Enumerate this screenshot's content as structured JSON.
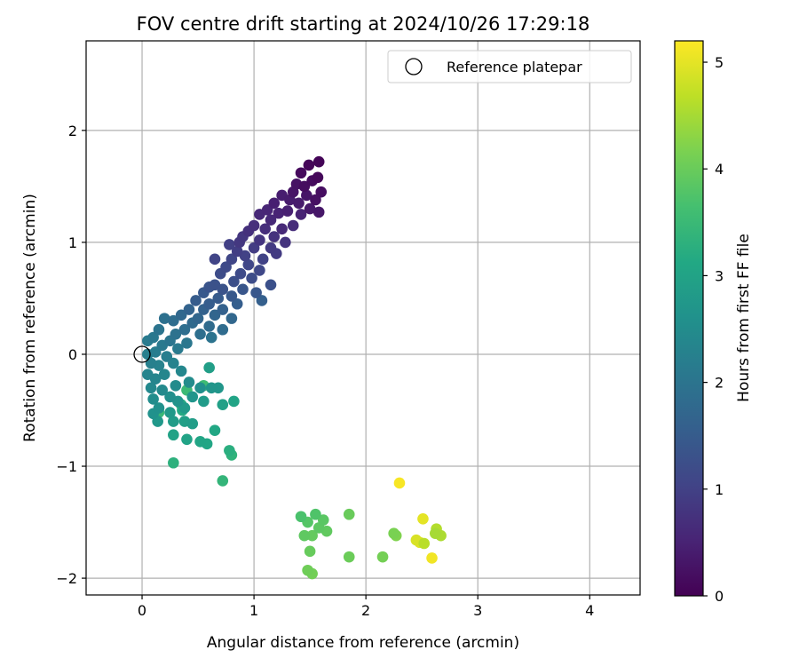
{
  "chart_data": {
    "type": "scatter",
    "title": "FOV centre drift starting at 2024/10/26 17:29:18",
    "xlabel": "Angular distance from reference (arcmin)",
    "ylabel": "Rotation from reference (arcmin)",
    "xlim": [
      -0.5,
      4.45
    ],
    "ylim": [
      -2.15,
      2.8
    ],
    "xticks": [
      0,
      1,
      2,
      3,
      4
    ],
    "xtick_labels": [
      "0",
      "1",
      "2",
      "3",
      "4"
    ],
    "yticks": [
      -2,
      -1,
      0,
      1,
      2
    ],
    "ytick_labels": [
      "−2",
      "−1",
      "0",
      "1",
      "2"
    ],
    "grid": true,
    "legend": {
      "label": "Reference platepar",
      "position": "upper right",
      "marker": "hollow circle"
    },
    "reference_point": {
      "x": 0,
      "y": 0
    },
    "colorbar": {
      "label": "Hours from first FF file",
      "min": 0,
      "max": 5.2,
      "colormap": "viridis",
      "ticks": [
        0,
        1,
        2,
        3,
        4,
        5
      ],
      "tick_labels": [
        "0",
        "1",
        "2",
        "3",
        "4",
        "5"
      ]
    },
    "points": [
      {
        "x": 1.58,
        "y": 1.72,
        "t": 0.05
      },
      {
        "x": 1.49,
        "y": 1.69,
        "t": 0.08
      },
      {
        "x": 1.57,
        "y": 1.58,
        "t": 0.1
      },
      {
        "x": 1.42,
        "y": 1.62,
        "t": 0.12
      },
      {
        "x": 1.52,
        "y": 1.55,
        "t": 0.15
      },
      {
        "x": 1.45,
        "y": 1.5,
        "t": 0.18
      },
      {
        "x": 1.6,
        "y": 1.45,
        "t": 0.2
      },
      {
        "x": 1.55,
        "y": 1.38,
        "t": 0.22
      },
      {
        "x": 1.38,
        "y": 1.52,
        "t": 0.25
      },
      {
        "x": 1.35,
        "y": 1.45,
        "t": 0.28
      },
      {
        "x": 1.47,
        "y": 1.42,
        "t": 0.3
      },
      {
        "x": 1.58,
        "y": 1.27,
        "t": 0.32
      },
      {
        "x": 1.5,
        "y": 1.3,
        "t": 0.35
      },
      {
        "x": 1.4,
        "y": 1.35,
        "t": 0.38
      },
      {
        "x": 1.32,
        "y": 1.38,
        "t": 0.4
      },
      {
        "x": 1.25,
        "y": 1.42,
        "t": 0.42
      },
      {
        "x": 1.18,
        "y": 1.35,
        "t": 0.45
      },
      {
        "x": 1.3,
        "y": 1.28,
        "t": 0.48
      },
      {
        "x": 1.42,
        "y": 1.25,
        "t": 0.5
      },
      {
        "x": 1.22,
        "y": 1.26,
        "t": 0.52
      },
      {
        "x": 1.12,
        "y": 1.29,
        "t": 0.55
      },
      {
        "x": 1.05,
        "y": 1.25,
        "t": 0.58
      },
      {
        "x": 1.15,
        "y": 1.2,
        "t": 0.6
      },
      {
        "x": 1.25,
        "y": 1.12,
        "t": 0.62
      },
      {
        "x": 1.35,
        "y": 1.15,
        "t": 0.65
      },
      {
        "x": 1.1,
        "y": 1.12,
        "t": 0.68
      },
      {
        "x": 1.0,
        "y": 1.15,
        "t": 0.7
      },
      {
        "x": 0.95,
        "y": 1.1,
        "t": 0.72
      },
      {
        "x": 1.18,
        "y": 1.05,
        "t": 0.75
      },
      {
        "x": 1.28,
        "y": 1.0,
        "t": 0.78
      },
      {
        "x": 1.05,
        "y": 1.02,
        "t": 0.8
      },
      {
        "x": 0.9,
        "y": 1.05,
        "t": 0.82
      },
      {
        "x": 0.87,
        "y": 1.0,
        "t": 0.85
      },
      {
        "x": 1.15,
        "y": 0.95,
        "t": 0.88
      },
      {
        "x": 1.2,
        "y": 0.9,
        "t": 0.9
      },
      {
        "x": 1.0,
        "y": 0.95,
        "t": 0.92
      },
      {
        "x": 0.85,
        "y": 0.92,
        "t": 0.95
      },
      {
        "x": 0.78,
        "y": 0.98,
        "t": 0.98
      },
      {
        "x": 0.92,
        "y": 0.88,
        "t": 1.0
      },
      {
        "x": 1.08,
        "y": 0.85,
        "t": 1.02
      },
      {
        "x": 0.65,
        "y": 0.85,
        "t": 1.05
      },
      {
        "x": 0.8,
        "y": 0.85,
        "t": 1.08
      },
      {
        "x": 0.95,
        "y": 0.8,
        "t": 1.1
      },
      {
        "x": 1.05,
        "y": 0.75,
        "t": 1.12
      },
      {
        "x": 0.75,
        "y": 0.78,
        "t": 1.15
      },
      {
        "x": 0.88,
        "y": 0.72,
        "t": 1.18
      },
      {
        "x": 0.7,
        "y": 0.72,
        "t": 1.2
      },
      {
        "x": 0.98,
        "y": 0.68,
        "t": 1.22
      },
      {
        "x": 0.82,
        "y": 0.65,
        "t": 1.25
      },
      {
        "x": 1.15,
        "y": 0.62,
        "t": 1.28
      },
      {
        "x": 0.65,
        "y": 0.62,
        "t": 1.3
      },
      {
        "x": 0.72,
        "y": 0.58,
        "t": 1.32
      },
      {
        "x": 0.6,
        "y": 0.6,
        "t": 1.35
      },
      {
        "x": 0.9,
        "y": 0.58,
        "t": 1.38
      },
      {
        "x": 1.02,
        "y": 0.55,
        "t": 1.4
      },
      {
        "x": 0.8,
        "y": 0.52,
        "t": 1.42
      },
      {
        "x": 0.55,
        "y": 0.55,
        "t": 1.45
      },
      {
        "x": 0.68,
        "y": 0.5,
        "t": 1.48
      },
      {
        "x": 0.48,
        "y": 0.48,
        "t": 1.5
      },
      {
        "x": 0.6,
        "y": 0.45,
        "t": 1.52
      },
      {
        "x": 0.85,
        "y": 0.45,
        "t": 1.55
      },
      {
        "x": 1.07,
        "y": 0.48,
        "t": 1.58
      },
      {
        "x": 0.72,
        "y": 0.4,
        "t": 1.6
      },
      {
        "x": 0.55,
        "y": 0.4,
        "t": 1.62
      },
      {
        "x": 0.42,
        "y": 0.4,
        "t": 1.65
      },
      {
        "x": 0.65,
        "y": 0.35,
        "t": 1.68
      },
      {
        "x": 0.5,
        "y": 0.32,
        "t": 1.7
      },
      {
        "x": 0.8,
        "y": 0.32,
        "t": 1.72
      },
      {
        "x": 0.35,
        "y": 0.35,
        "t": 1.75
      },
      {
        "x": 0.45,
        "y": 0.28,
        "t": 1.78
      },
      {
        "x": 0.6,
        "y": 0.25,
        "t": 1.8
      },
      {
        "x": 0.72,
        "y": 0.22,
        "t": 1.82
      },
      {
        "x": 0.28,
        "y": 0.3,
        "t": 1.85
      },
      {
        "x": 0.38,
        "y": 0.22,
        "t": 1.88
      },
      {
        "x": 0.52,
        "y": 0.18,
        "t": 1.9
      },
      {
        "x": 0.2,
        "y": 0.32,
        "t": 1.92
      },
      {
        "x": 0.3,
        "y": 0.18,
        "t": 1.95
      },
      {
        "x": 0.62,
        "y": 0.15,
        "t": 1.98
      },
      {
        "x": 0.15,
        "y": 0.22,
        "t": 2.0
      },
      {
        "x": 0.25,
        "y": 0.12,
        "t": 2.02
      },
      {
        "x": 0.4,
        "y": 0.1,
        "t": 2.05
      },
      {
        "x": 0.1,
        "y": 0.15,
        "t": 2.08
      },
      {
        "x": 0.18,
        "y": 0.08,
        "t": 2.1
      },
      {
        "x": 0.32,
        "y": 0.05,
        "t": 2.12
      },
      {
        "x": 0.05,
        "y": 0.12,
        "t": 2.15
      },
      {
        "x": 0.12,
        "y": 0.02,
        "t": 2.18
      },
      {
        "x": 0.22,
        "y": -0.02,
        "t": 2.2
      },
      {
        "x": 0.05,
        "y": 0.0,
        "t": 2.22
      },
      {
        "x": 0.08,
        "y": -0.08,
        "t": 2.25
      },
      {
        "x": 0.15,
        "y": -0.1,
        "t": 2.28
      },
      {
        "x": 0.28,
        "y": -0.08,
        "t": 2.3
      },
      {
        "x": 0.05,
        "y": -0.18,
        "t": 2.32
      },
      {
        "x": 0.12,
        "y": -0.22,
        "t": 2.35
      },
      {
        "x": 0.2,
        "y": -0.18,
        "t": 2.38
      },
      {
        "x": 0.35,
        "y": -0.15,
        "t": 2.4
      },
      {
        "x": 0.08,
        "y": -0.3,
        "t": 2.42
      },
      {
        "x": 0.18,
        "y": -0.32,
        "t": 2.45
      },
      {
        "x": 0.3,
        "y": -0.28,
        "t": 2.48
      },
      {
        "x": 0.42,
        "y": -0.25,
        "t": 2.5
      },
      {
        "x": 0.1,
        "y": -0.4,
        "t": 2.52
      },
      {
        "x": 0.25,
        "y": -0.38,
        "t": 2.55
      },
      {
        "x": 0.52,
        "y": -0.3,
        "t": 2.58
      },
      {
        "x": 0.15,
        "y": -0.48,
        "t": 2.6
      },
      {
        "x": 0.1,
        "y": -0.53,
        "t": 2.62
      },
      {
        "x": 0.32,
        "y": -0.42,
        "t": 2.65
      },
      {
        "x": 0.45,
        "y": -0.38,
        "t": 2.68
      },
      {
        "x": 0.62,
        "y": -0.3,
        "t": 2.7
      },
      {
        "x": 0.68,
        "y": -0.3,
        "t": 2.72
      },
      {
        "x": 0.14,
        "y": -0.6,
        "t": 2.75
      },
      {
        "x": 0.25,
        "y": -0.52,
        "t": 2.78
      },
      {
        "x": 0.38,
        "y": -0.48,
        "t": 2.8
      },
      {
        "x": 0.55,
        "y": -0.42,
        "t": 2.82
      },
      {
        "x": 0.28,
        "y": -0.6,
        "t": 2.85
      },
      {
        "x": 0.45,
        "y": -0.62,
        "t": 2.88
      },
      {
        "x": 0.6,
        "y": -0.12,
        "t": 2.9
      },
      {
        "x": 0.38,
        "y": -0.6,
        "t": 2.92
      },
      {
        "x": 0.72,
        "y": -0.45,
        "t": 2.95
      },
      {
        "x": 0.28,
        "y": -0.72,
        "t": 2.98
      },
      {
        "x": 0.4,
        "y": -0.76,
        "t": 3.0
      },
      {
        "x": 0.82,
        "y": -0.42,
        "t": 3.02
      },
      {
        "x": 0.52,
        "y": -0.78,
        "t": 3.05
      },
      {
        "x": 0.58,
        "y": -0.8,
        "t": 3.08
      },
      {
        "x": 0.65,
        "y": -0.68,
        "t": 3.1
      },
      {
        "x": 0.36,
        "y": -0.5,
        "t": 3.15
      },
      {
        "x": 0.35,
        "y": -0.45,
        "t": 3.2
      },
      {
        "x": 0.78,
        "y": -0.86,
        "t": 3.25
      },
      {
        "x": 0.28,
        "y": -0.97,
        "t": 3.3
      },
      {
        "x": 0.8,
        "y": -0.9,
        "t": 3.35
      },
      {
        "x": 0.72,
        "y": -1.13,
        "t": 3.4
      },
      {
        "x": 0.15,
        "y": -0.52,
        "t": 3.45
      },
      {
        "x": 0.4,
        "y": -0.32,
        "t": 3.5
      },
      {
        "x": 0.55,
        "y": -0.28,
        "t": 3.55
      },
      {
        "x": 1.42,
        "y": -1.45,
        "t": 3.7
      },
      {
        "x": 1.55,
        "y": -1.43,
        "t": 3.75
      },
      {
        "x": 1.48,
        "y": -1.5,
        "t": 3.8
      },
      {
        "x": 1.62,
        "y": -1.48,
        "t": 3.85
      },
      {
        "x": 1.58,
        "y": -1.55,
        "t": 3.88
      },
      {
        "x": 1.45,
        "y": -1.62,
        "t": 3.9
      },
      {
        "x": 1.65,
        "y": -1.58,
        "t": 3.92
      },
      {
        "x": 1.52,
        "y": -1.62,
        "t": 3.95
      },
      {
        "x": 1.5,
        "y": -1.76,
        "t": 3.98
      },
      {
        "x": 1.85,
        "y": -1.43,
        "t": 4.0
      },
      {
        "x": 1.85,
        "y": -1.81,
        "t": 4.02
      },
      {
        "x": 1.48,
        "y": -1.93,
        "t": 4.05
      },
      {
        "x": 1.52,
        "y": -1.96,
        "t": 4.08
      },
      {
        "x": 2.15,
        "y": -1.81,
        "t": 4.1
      },
      {
        "x": 2.25,
        "y": -1.6,
        "t": 4.15
      },
      {
        "x": 2.27,
        "y": -1.62,
        "t": 4.2
      },
      {
        "x": 2.62,
        "y": -1.6,
        "t": 4.5
      },
      {
        "x": 2.67,
        "y": -1.62,
        "t": 4.55
      },
      {
        "x": 2.63,
        "y": -1.56,
        "t": 4.6
      },
      {
        "x": 2.52,
        "y": -1.69,
        "t": 4.65
      },
      {
        "x": 2.45,
        "y": -1.66,
        "t": 4.9
      },
      {
        "x": 2.48,
        "y": -1.68,
        "t": 4.95
      },
      {
        "x": 2.51,
        "y": -1.47,
        "t": 5.0
      },
      {
        "x": 2.59,
        "y": -1.82,
        "t": 5.1
      },
      {
        "x": 2.3,
        "y": -1.15,
        "t": 5.15
      }
    ]
  }
}
